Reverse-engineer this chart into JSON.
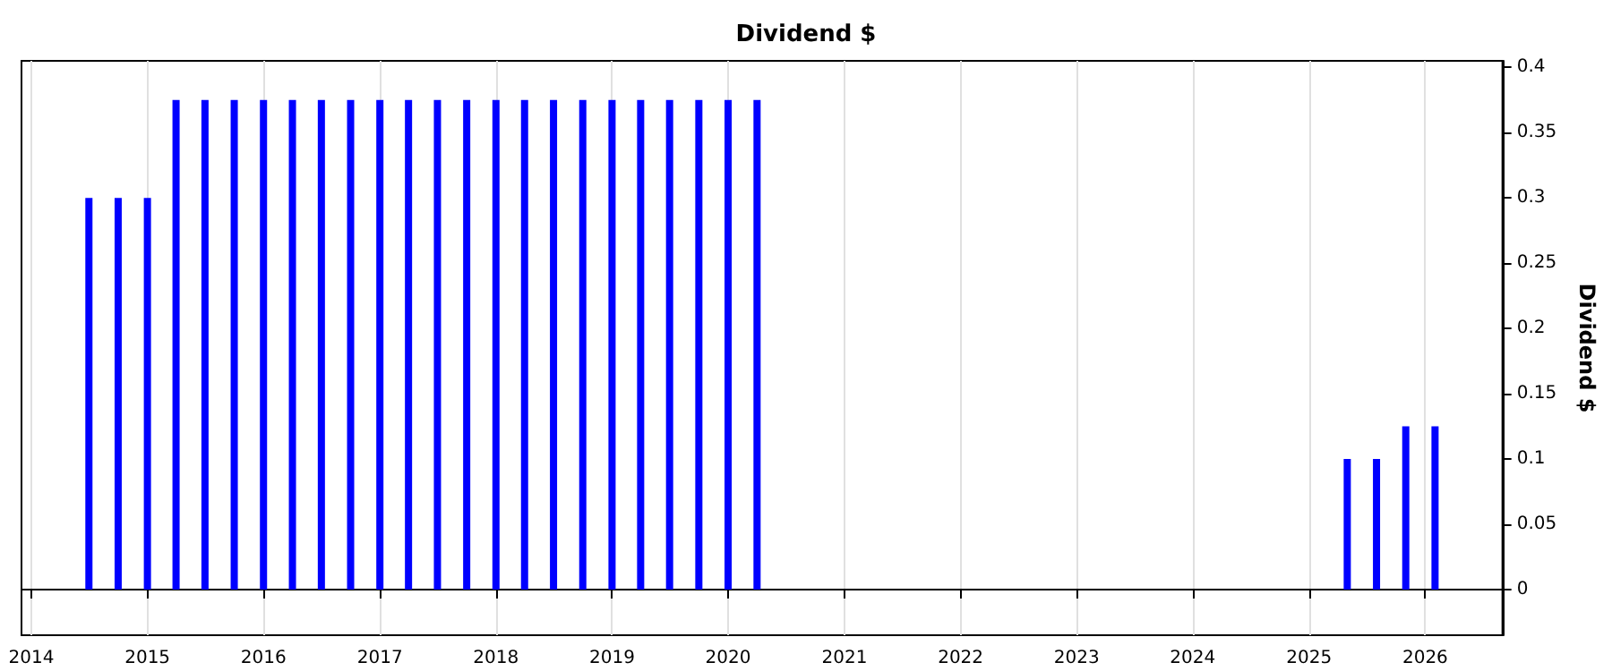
{
  "chart_data": {
    "type": "bar",
    "title": "Dividend $",
    "ylabel": "Dividend $",
    "x": [
      "2014-07",
      "2014-10",
      "2015-01",
      "2015-04",
      "2015-07",
      "2015-10",
      "2016-01",
      "2016-04",
      "2016-07",
      "2016-10",
      "2017-01",
      "2017-04",
      "2017-07",
      "2017-10",
      "2018-01",
      "2018-04",
      "2018-07",
      "2018-10",
      "2019-01",
      "2019-04",
      "2019-07",
      "2019-10",
      "2020-01",
      "2020-04",
      "2025-05",
      "2025-08",
      "2025-11",
      "2026-02"
    ],
    "values": [
      0.3,
      0.3,
      0.3,
      0.375,
      0.375,
      0.375,
      0.375,
      0.375,
      0.375,
      0.375,
      0.375,
      0.375,
      0.375,
      0.375,
      0.375,
      0.375,
      0.375,
      0.375,
      0.375,
      0.375,
      0.375,
      0.375,
      0.375,
      0.375,
      0.1,
      0.1,
      0.125,
      0.125
    ],
    "color": "#0000ff",
    "xlim": [
      "2013-12",
      "2026-09"
    ],
    "xticks": [
      "2014",
      "2015",
      "2016",
      "2017",
      "2018",
      "2019",
      "2020",
      "2021",
      "2022",
      "2023",
      "2024",
      "2025",
      "2026"
    ],
    "ylim": [
      -0.035,
      0.405
    ],
    "yticks": [
      0,
      0.05,
      0.1,
      0.15,
      0.2,
      0.25,
      0.3,
      0.35,
      0.4
    ],
    "grid": "x"
  }
}
